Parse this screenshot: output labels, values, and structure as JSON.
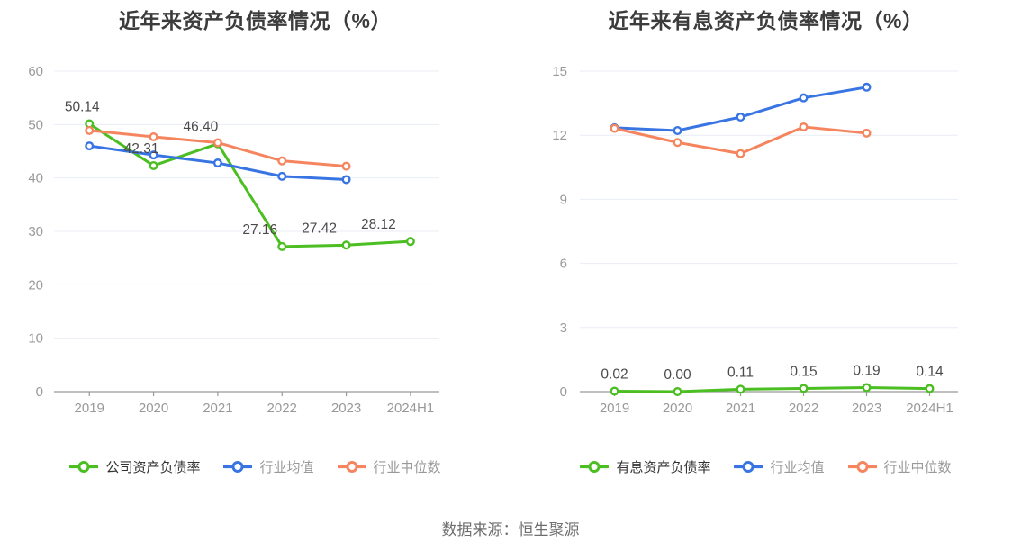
{
  "footer": {
    "source": "数据来源：恒生聚源"
  },
  "colors": {
    "company_green": "#4bbe22",
    "industry_avg_blue": "#3875e3",
    "industry_median_orange": "#f5855f",
    "grid_line": "#e9edf5",
    "axis_line": "#999999",
    "tick_label": "#999999",
    "data_label": "#4a4a4a",
    "title_text": "#3c3c3c"
  },
  "chart_data": [
    {
      "type": "line",
      "title": "近年来资产负债率情况（%）",
      "categories": [
        "2019",
        "2020",
        "2021",
        "2022",
        "2023",
        "2024H1"
      ],
      "ylim": [
        0,
        60
      ],
      "yticks": [
        0,
        10,
        20,
        30,
        40,
        50,
        60
      ],
      "grid": true,
      "legend_position": "bottom",
      "series": [
        {
          "key": "company",
          "name": "公司资产负债率",
          "color": "#4bbe22",
          "values": [
            50.14,
            42.31,
            46.4,
            27.16,
            27.42,
            28.12
          ],
          "point_labels": [
            "50.14",
            "42.31",
            "46.40",
            "27.16",
            "27.42",
            "28.12"
          ]
        },
        {
          "key": "industry-avg",
          "name": "行业均值",
          "color": "#3875e3",
          "values": [
            46.0,
            44.3,
            42.8,
            40.3,
            39.7
          ]
        },
        {
          "key": "industry-median",
          "name": "行业中位数",
          "color": "#f5855f",
          "values": [
            48.9,
            47.7,
            46.6,
            43.2,
            42.2
          ]
        }
      ]
    },
    {
      "type": "line",
      "title": "近年来有息资产负债率情况（%）",
      "categories": [
        "2019",
        "2020",
        "2021",
        "2022",
        "2023",
        "2024H1"
      ],
      "ylim": [
        0,
        15
      ],
      "yticks": [
        0,
        3,
        6,
        9,
        12,
        15
      ],
      "grid": true,
      "legend_position": "bottom",
      "series": [
        {
          "key": "company",
          "name": "有息资产负债率",
          "color": "#4bbe22",
          "values": [
            0.02,
            0.0,
            0.11,
            0.15,
            0.19,
            0.14
          ],
          "point_labels": [
            "0.02",
            "0.00",
            "0.11",
            "0.15",
            "0.19",
            "0.14"
          ]
        },
        {
          "key": "industry-avg",
          "name": "行业均值",
          "color": "#3875e3",
          "values": [
            12.35,
            12.22,
            12.85,
            13.75,
            14.25
          ]
        },
        {
          "key": "industry-median",
          "name": "行业中位数",
          "color": "#f5855f",
          "values": [
            12.32,
            11.66,
            11.14,
            12.39,
            12.1
          ]
        }
      ]
    }
  ]
}
